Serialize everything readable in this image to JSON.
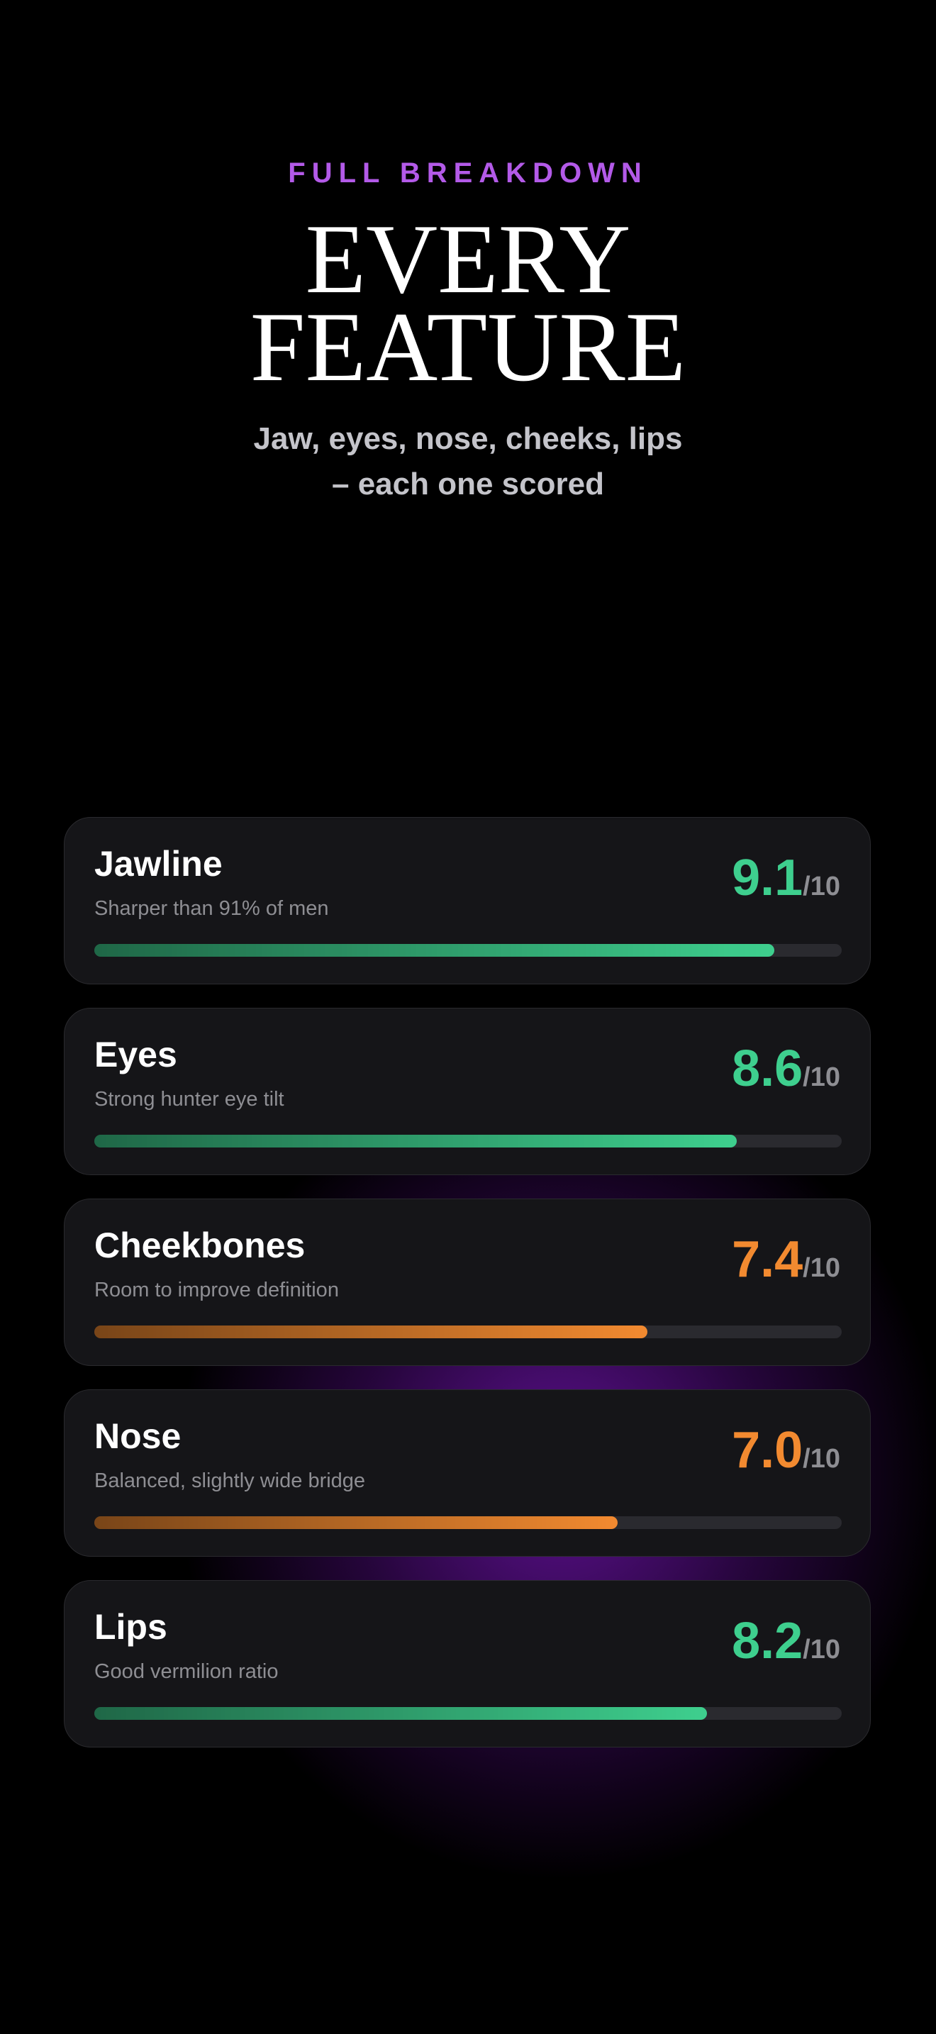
{
  "header": {
    "eyebrow": "FULL BREAKDOWN",
    "title_lines": [
      "EVERY",
      "FEATURE"
    ],
    "subtitle_lines": [
      "Jaw, eyes, nose, cheeks, lips",
      "– each one scored"
    ]
  },
  "items": [
    {
      "name": "Jawline",
      "description": "Sharper than 91% of men",
      "score": 9.1,
      "scale": {
        "value": 10,
        "label": "/10"
      },
      "color": "#3ecf8e"
    },
    {
      "name": "Eyes",
      "description": "Strong hunter eye tilt",
      "score": 8.6,
      "scale": {
        "value": 10,
        "label": "/10"
      },
      "color": "#3ecf8e"
    },
    {
      "name": "Cheekbones",
      "description": "Room to improve definition",
      "score": 7.4,
      "scale": {
        "value": 10,
        "label": "/10"
      },
      "color": "#f28a30"
    },
    {
      "name": "Nose",
      "description": "Balanced, slightly wide bridge",
      "score": 7.0,
      "score_label": "7.0",
      "scale": {
        "value": 10,
        "label": "/10"
      },
      "color": "#f28a30"
    },
    {
      "name": "Lips",
      "description": "Good vermilion ratio",
      "score": 8.2,
      "scale": {
        "value": 10,
        "label": "/10"
      },
      "color": "#3ecf8e"
    }
  ]
}
